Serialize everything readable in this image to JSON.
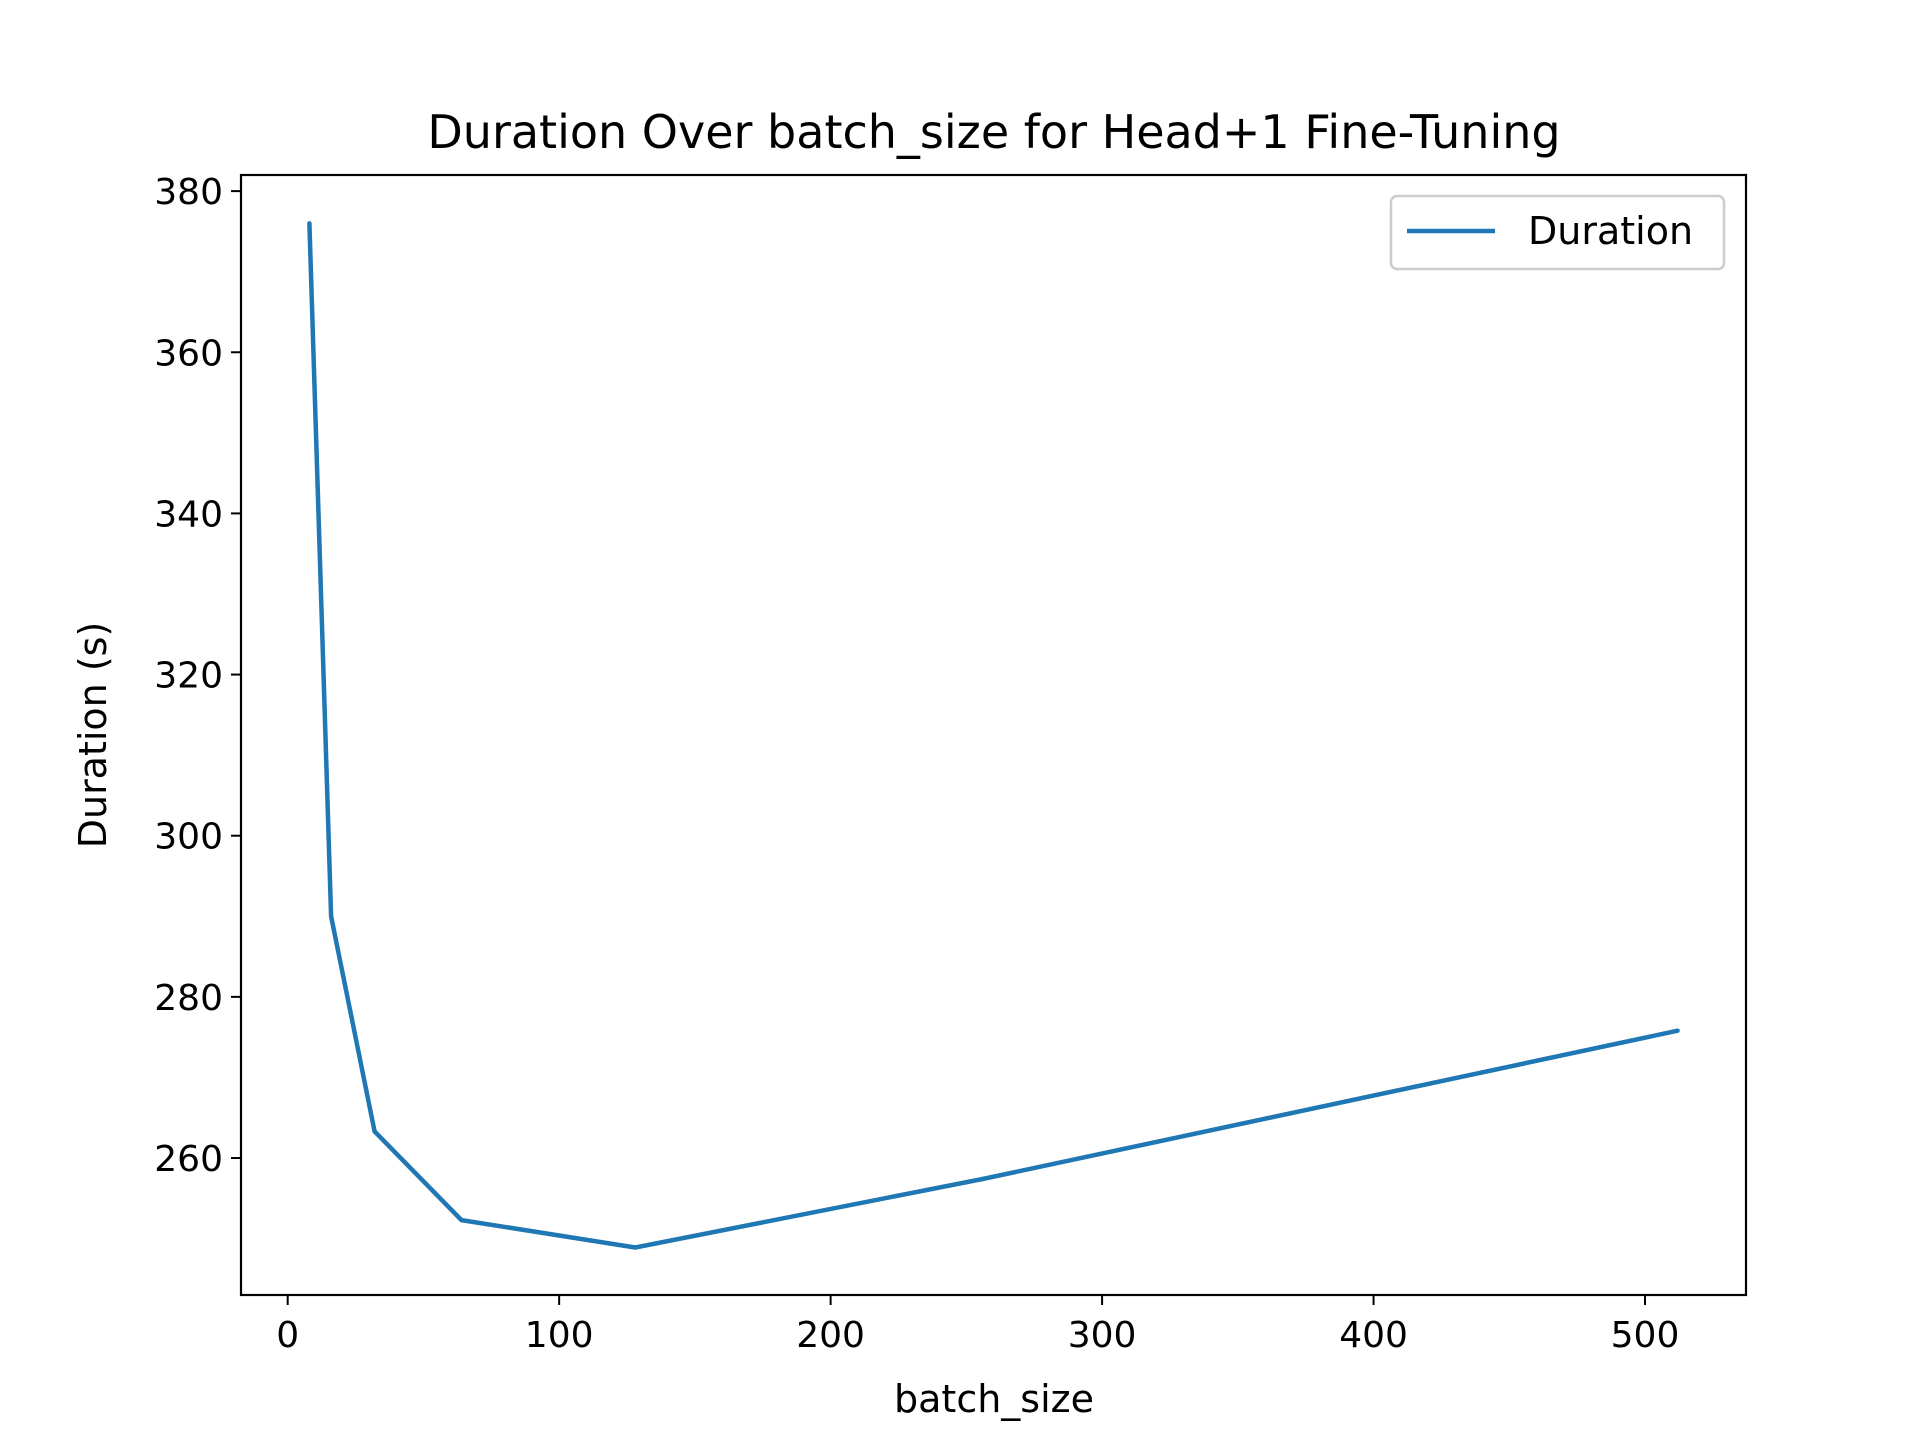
{
  "chart_data": {
    "type": "line",
    "title": "Duration Over batch_size for Head+1 Fine-Tuning",
    "xlabel": "batch_size",
    "ylabel": "Duration (s)",
    "xlim": [
      -17.2,
      537.2
    ],
    "ylim": [
      243.0,
      382.0
    ],
    "xticks": [
      0,
      100,
      200,
      300,
      400,
      500
    ],
    "yticks": [
      260,
      280,
      300,
      320,
      340,
      360,
      380
    ],
    "grid": false,
    "legend_position": "top-right",
    "series": [
      {
        "name": "Duration",
        "color": "#1f77b4",
        "x": [
          8,
          16,
          32,
          64,
          128,
          256,
          512
        ],
        "y": [
          376.0,
          290.0,
          263.3,
          252.3,
          248.9,
          257.4,
          275.8
        ]
      }
    ]
  }
}
